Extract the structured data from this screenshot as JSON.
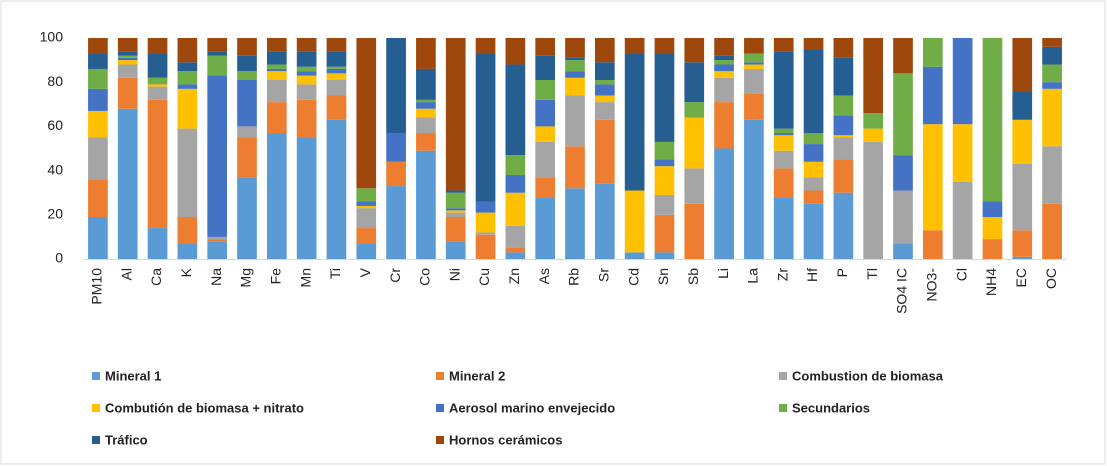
{
  "chart_data": {
    "type": "stacked_bar",
    "categories": [
      "PM10",
      "Al",
      "Ca",
      "K",
      "Na",
      "Mg",
      "Fe",
      "Mn",
      "Ti",
      "V",
      "Cr",
      "Co",
      "Ni",
      "Cu",
      "Zn",
      "As",
      "Rb",
      "Sr",
      "Cd",
      "Sn",
      "Sb",
      "Li",
      "La",
      "Zr",
      "Hf",
      "P",
      "Tl",
      "SO4 IC",
      "NO3-",
      "Cl",
      "NH4",
      "EC",
      "OC"
    ],
    "series": [
      {
        "name": "Mineral 1",
        "color": "#5b9bd5",
        "values": [
          19,
          68,
          14,
          7,
          8,
          37,
          57,
          55,
          63,
          7,
          33,
          49,
          8,
          0,
          3,
          28,
          32,
          34,
          3,
          3,
          0,
          50,
          63,
          28,
          25,
          30,
          0,
          7,
          0,
          0,
          0,
          1,
          0
        ]
      },
      {
        "name": "Mineral 2",
        "color": "#ed7d31",
        "values": [
          17,
          14,
          58,
          12,
          1,
          18,
          14,
          17,
          11,
          7,
          11,
          8,
          11,
          11,
          2,
          9,
          19,
          29,
          0,
          17,
          25,
          21,
          12,
          13,
          6,
          15,
          0,
          0,
          13,
          0,
          9,
          12,
          25
        ]
      },
      {
        "name": "Combustion de biomasa",
        "color": "#a5a5a5",
        "values": [
          19,
          6,
          6,
          40,
          1,
          5,
          10,
          7,
          7,
          9,
          0,
          7,
          2,
          1,
          10,
          16,
          23,
          8,
          0,
          9,
          16,
          11,
          11,
          8,
          6,
          10,
          53,
          24,
          0,
          35,
          0,
          30,
          26
        ]
      },
      {
        "name": "Combutión de biomasa + nitrato",
        "color": "#ffc000",
        "values": [
          12,
          2,
          1,
          18,
          0,
          0,
          4,
          4,
          3,
          1,
          0,
          4,
          1,
          9,
          15,
          7,
          8,
          3,
          28,
          13,
          23,
          3,
          2,
          7,
          7,
          1,
          6,
          0,
          48,
          26,
          10,
          20,
          26
        ]
      },
      {
        "name": "Aerosol marino envejecido",
        "color": "#4472c4",
        "values": [
          10,
          1,
          0,
          2,
          73,
          21,
          1,
          2,
          2,
          2,
          13,
          3,
          1,
          5,
          8,
          12,
          3,
          5,
          0,
          3,
          0,
          3,
          1,
          1,
          8,
          9,
          0,
          16,
          26,
          39,
          7,
          0,
          3
        ]
      },
      {
        "name": "Secundarios",
        "color": "#70ad47",
        "values": [
          9,
          1,
          3,
          6,
          9,
          4,
          2,
          2,
          1,
          6,
          0,
          1,
          7,
          0,
          9,
          9,
          5,
          2,
          0,
          8,
          7,
          2,
          4,
          2,
          5,
          9,
          7,
          37,
          13,
          0,
          74,
          0,
          8
        ]
      },
      {
        "name": "Tráfico",
        "color": "#255e91",
        "values": [
          7,
          2,
          11,
          4,
          2,
          7,
          6,
          7,
          7,
          0,
          43,
          14,
          1,
          67,
          41,
          11,
          1,
          8,
          62,
          40,
          18,
          2,
          0,
          35,
          38,
          17,
          0,
          0,
          0,
          0,
          0,
          13,
          8
        ]
      },
      {
        "name": "Hornos cerámicos",
        "color": "#9e480e",
        "values": [
          7,
          6,
          7,
          11,
          6,
          8,
          6,
          6,
          6,
          68,
          0,
          14,
          69,
          7,
          12,
          8,
          9,
          11,
          7,
          7,
          11,
          8,
          7,
          6,
          5,
          9,
          34,
          16,
          0,
          0,
          0,
          24,
          4
        ]
      }
    ],
    "ylim": [
      0,
      100
    ],
    "yticks": [
      0,
      20,
      40,
      60,
      80,
      100
    ],
    "grid": false,
    "legend": "bottom"
  }
}
